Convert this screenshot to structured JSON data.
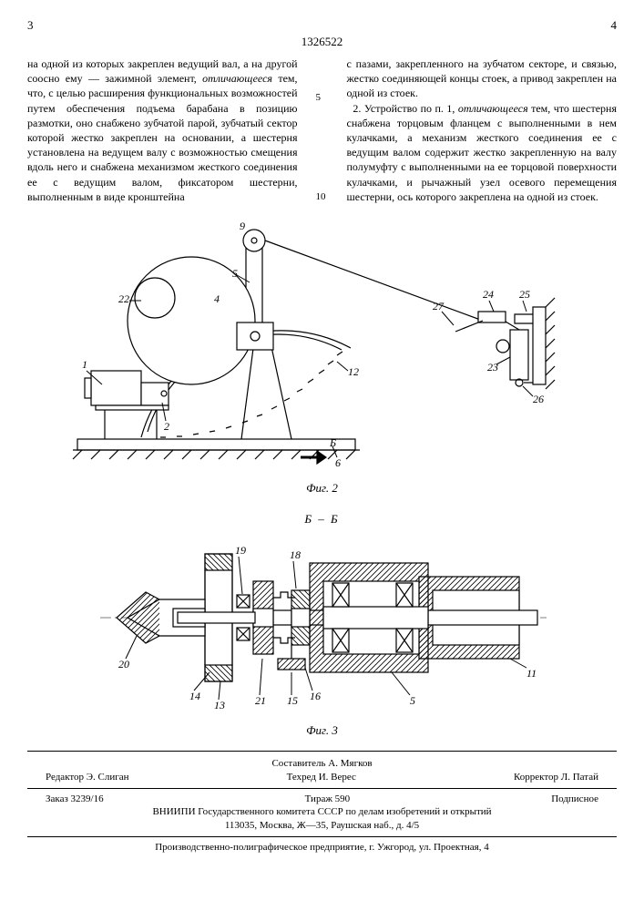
{
  "header": {
    "left_col_num": "3",
    "right_col_num": "4",
    "patent_number": "1326522"
  },
  "text": {
    "left_column": "на одной из которых закреплен ведущий вал, а на другой соосно ему — зажимной элемент, <span class=\"emph\">отличающееся</span> тем, что, с целью расширения функциональных возможностей путем обеспечения подъема барабана в позицию размотки, оно снабжено зубчатой парой, зубчатый сектор которой жестко закреплен на основании, а шестерня установлена на ведущем валу с возможностью смещения вдоль него и снабжена механизмом жесткого соединения ее с ведущим валом, фиксатором шестерни, выполненным в виде кронштейна",
    "right_column": "с пазами, закрепленного на зубчатом секторе, и связью, жестко соединяющей концы стоек, а привод закреплен на одной из стоек.<br>&nbsp;&nbsp;2. Устройство по п. 1, <span class=\"emph\">отличающееся</span> тем, что шестерня снабжена торцовым фланцем с выполненными в нем кулачками, а механизм жесткого соединения ее с ведущим валом содержит жестко закрепленную на валу полумуфту с выполненными на ее торцовой поверхности кулачками, и рычажный узел осевого перемещения шестерни, ось которого закреплена на одной из стоек.",
    "line_markers": [
      "5",
      "10"
    ]
  },
  "fig2": {
    "caption": "Фиг. 2",
    "labels": {
      "l1": "1",
      "l2": "2",
      "l4": "4",
      "l5": "5",
      "l6": "6",
      "l9": "9",
      "l12": "12",
      "l22": "22",
      "l23": "23",
      "l24": "24",
      "l25": "25",
      "l26": "26",
      "l27": "27"
    },
    "section_label": "Б"
  },
  "fig3": {
    "caption": "Фиг. 3",
    "section_title": "Б – Б",
    "labels": {
      "l5": "5",
      "l11": "11",
      "l13": "13",
      "l14": "14",
      "l15": "15",
      "l16": "16",
      "l18": "18",
      "l19": "19",
      "l20": "20",
      "l21": "21"
    }
  },
  "colophon": {
    "compiler": "Составитель А. Мягков",
    "editor": "Редактор Э. Слиган",
    "techred": "Техред И. Верес",
    "corrector": "Корректор Л. Патай",
    "order": "Заказ 3239/16",
    "tirazh": "Тираж 590",
    "podpisnoe": "Подписное",
    "vniipi": "ВНИИПИ Государственного комитета СССР по делам изобретений и открытий",
    "address1": "113035, Москва, Ж—35, Раушская наб., д. 4/5",
    "press": "Производственно-полиграфическое предприятие, г. Ужгород, ул. Проектная, 4"
  },
  "style": {
    "stroke": "#000000",
    "hatch": "#000000",
    "bg": "#ffffff",
    "font_size_label": 12
  }
}
